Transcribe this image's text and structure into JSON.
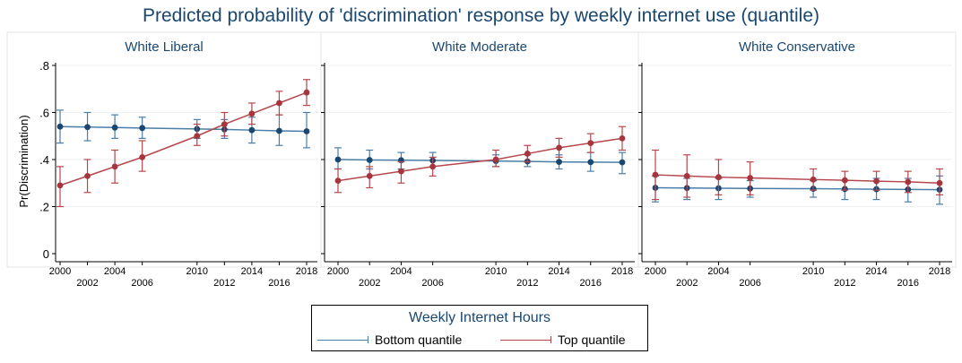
{
  "title": "Predicted probability of 'discrimination' response by weekly internet use (quantile)",
  "legend": {
    "title": "Weekly Internet Hours",
    "items": [
      {
        "label": "Bottom quantile",
        "color": "#4a7ea8"
      },
      {
        "label": "Top quantile",
        "color": "#b5474d"
      }
    ]
  },
  "chart_data": {
    "type": "line",
    "ylabel": "Pr(Discrimination)",
    "ylim": [
      0,
      0.8
    ],
    "yticks": [
      0,
      0.2,
      0.4,
      0.6,
      0.8
    ],
    "ytick_labels": [
      "0",
      ".2",
      ".4",
      ".6",
      ".8"
    ],
    "x": [
      2000,
      2002,
      2004,
      2006,
      2010,
      2012,
      2014,
      2016,
      2018
    ],
    "xticks_upper": [
      "2000",
      "2004",
      "2010",
      "2014",
      "2018"
    ],
    "xticks_lower": [
      "2002",
      "2006",
      "2012",
      "2016"
    ],
    "xlim": [
      2000,
      2018
    ],
    "marker_color": "#1a476f",
    "panels": [
      {
        "name": "White Liberal",
        "series": [
          {
            "name": "Bottom quantile",
            "color": "#4a7ea8",
            "marker_color": "#1a476f",
            "values": [
              0.54,
              0.538,
              0.536,
              0.534,
              0.53,
              0.528,
              0.525,
              0.522,
              0.52
            ],
            "ci": [
              [
                0.47,
                0.61
              ],
              [
                0.48,
                0.6
              ],
              [
                0.49,
                0.59
              ],
              [
                0.49,
                0.58
              ],
              [
                0.49,
                0.57
              ],
              [
                0.49,
                0.57
              ],
              [
                0.47,
                0.58
              ],
              [
                0.46,
                0.59
              ],
              [
                0.45,
                0.6
              ]
            ]
          },
          {
            "name": "Top quantile",
            "color": "#b5474d",
            "marker_color": "#a7353d",
            "values": [
              0.29,
              0.33,
              0.37,
              0.41,
              0.5,
              0.55,
              0.595,
              0.64,
              0.685
            ],
            "ci": [
              [
                0.2,
                0.37
              ],
              [
                0.26,
                0.4
              ],
              [
                0.3,
                0.44
              ],
              [
                0.35,
                0.48
              ],
              [
                0.46,
                0.55
              ],
              [
                0.5,
                0.6
              ],
              [
                0.55,
                0.64
              ],
              [
                0.59,
                0.69
              ],
              [
                0.63,
                0.74
              ]
            ]
          }
        ]
      },
      {
        "name": "White Moderate",
        "series": [
          {
            "name": "Bottom quantile",
            "color": "#4a7ea8",
            "marker_color": "#1a476f",
            "values": [
              0.4,
              0.398,
              0.397,
              0.396,
              0.394,
              0.392,
              0.39,
              0.389,
              0.388
            ],
            "ci": [
              [
                0.36,
                0.45
              ],
              [
                0.36,
                0.44
              ],
              [
                0.36,
                0.43
              ],
              [
                0.37,
                0.43
              ],
              [
                0.37,
                0.42
              ],
              [
                0.37,
                0.42
              ],
              [
                0.36,
                0.42
              ],
              [
                0.35,
                0.43
              ],
              [
                0.34,
                0.43
              ]
            ]
          },
          {
            "name": "Top quantile",
            "color": "#b5474d",
            "marker_color": "#a7353d",
            "values": [
              0.31,
              0.33,
              0.35,
              0.37,
              0.4,
              0.425,
              0.45,
              0.47,
              0.49
            ],
            "ci": [
              [
                0.26,
                0.36
              ],
              [
                0.28,
                0.37
              ],
              [
                0.3,
                0.39
              ],
              [
                0.33,
                0.41
              ],
              [
                0.37,
                0.44
              ],
              [
                0.39,
                0.46
              ],
              [
                0.41,
                0.49
              ],
              [
                0.43,
                0.51
              ],
              [
                0.44,
                0.54
              ]
            ]
          }
        ]
      },
      {
        "name": "White Conservative",
        "series": [
          {
            "name": "Bottom quantile",
            "color": "#4a7ea8",
            "marker_color": "#1a476f",
            "values": [
              0.28,
              0.279,
              0.278,
              0.277,
              0.276,
              0.275,
              0.274,
              0.273,
              0.272
            ],
            "ci": [
              [
                0.22,
                0.33
              ],
              [
                0.23,
                0.32
              ],
              [
                0.23,
                0.32
              ],
              [
                0.24,
                0.31
              ],
              [
                0.24,
                0.31
              ],
              [
                0.23,
                0.31
              ],
              [
                0.23,
                0.32
              ],
              [
                0.22,
                0.32
              ],
              [
                0.21,
                0.33
              ]
            ]
          },
          {
            "name": "Top quantile",
            "color": "#b5474d",
            "marker_color": "#a7353d",
            "values": [
              0.335,
              0.33,
              0.325,
              0.322,
              0.315,
              0.312,
              0.308,
              0.305,
              0.3
            ],
            "ci": [
              [
                0.23,
                0.44
              ],
              [
                0.24,
                0.42
              ],
              [
                0.25,
                0.4
              ],
              [
                0.25,
                0.39
              ],
              [
                0.27,
                0.36
              ],
              [
                0.27,
                0.35
              ],
              [
                0.27,
                0.35
              ],
              [
                0.26,
                0.35
              ],
              [
                0.25,
                0.36
              ]
            ]
          }
        ]
      }
    ]
  }
}
